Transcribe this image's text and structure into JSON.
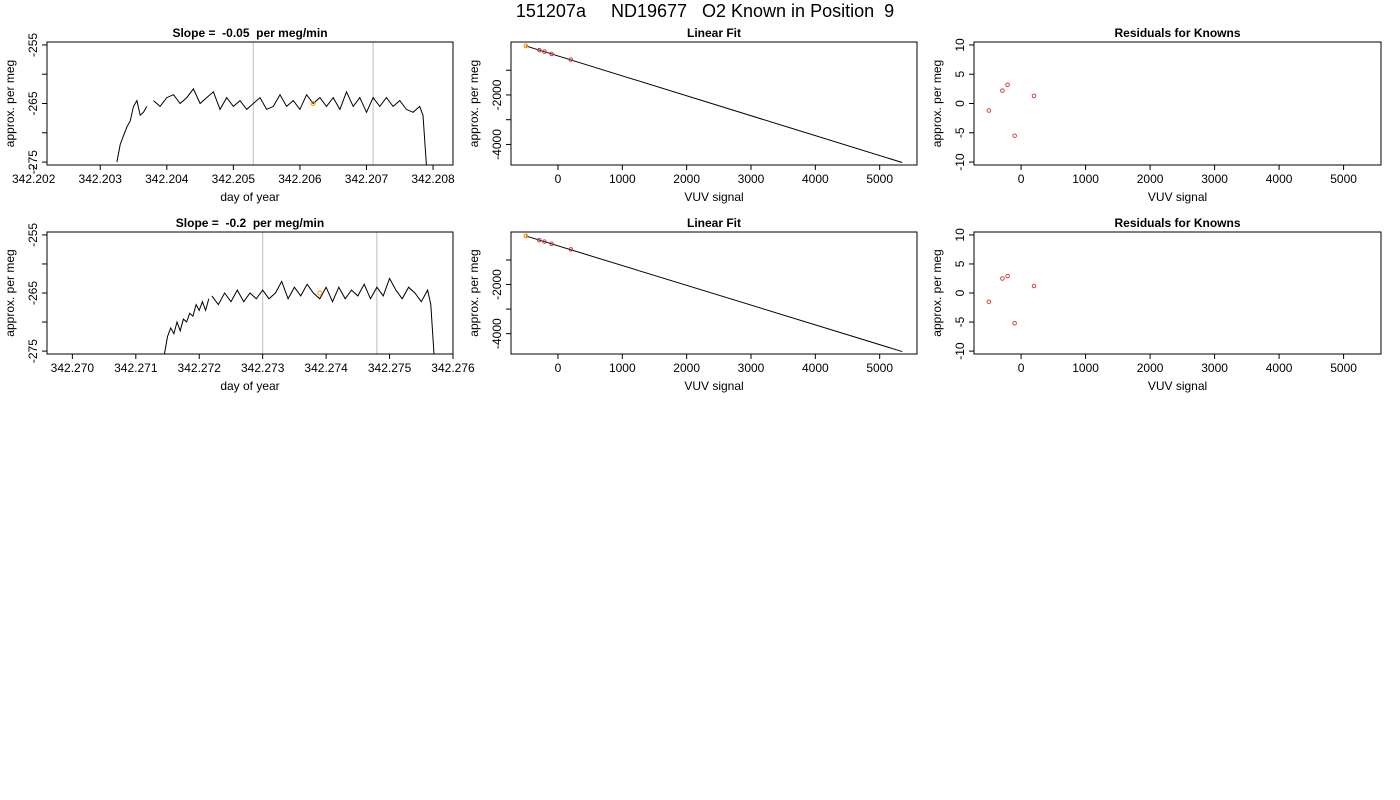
{
  "page_title": "151207a     ND19677   O2 Known in Position  9",
  "colors": {
    "line": "#000000",
    "cursor": "#c8c8c8",
    "point": "#cc3333",
    "highlight": "#ff9900"
  },
  "chart_data": [
    {
      "type": "line",
      "title": "Slope =  -0.05  per meg/min",
      "xlabel": "day of year",
      "ylabel": "approx. per meg",
      "xlim": [
        342.2022,
        342.2083
      ],
      "ylim": [
        -275.5,
        -254.5
      ],
      "x_ticks": [
        342.202,
        342.203,
        342.204,
        342.205,
        342.206,
        342.207,
        342.208
      ],
      "x_tick_labels": [
        "342.202",
        "342.203",
        "342.204",
        "342.205",
        "342.206",
        "342.207",
        "342.208"
      ],
      "y_ticks": [
        -255,
        -260,
        -265,
        -270,
        -275
      ],
      "y_tick_labels": [
        "-255",
        "",
        "-265",
        "",
        "-275"
      ],
      "vlines": [
        342.2053,
        342.2071
      ],
      "highlight_point": [
        342.2062,
        -265
      ],
      "trace_start": 342.2032,
      "trace_end": 342.2079,
      "series": [
        {
          "x": [
            342.20325,
            342.2033,
            342.20335,
            342.2034,
            342.20345,
            342.2035,
            342.20355,
            342.2036,
            342.20365,
            342.2037
          ],
          "y": [
            -275,
            -272,
            -270.5,
            -269,
            -268,
            -265.5,
            -264.5,
            -267,
            -266.5,
            -265.5
          ]
        },
        {
          "x": [
            342.2038,
            342.2039,
            342.204,
            342.2041,
            342.2042,
            342.2043,
            342.2044,
            342.2045,
            342.2046,
            342.2047,
            342.2048,
            342.2049,
            342.205,
            342.2051,
            342.2052,
            342.2053,
            342.2054,
            342.2055,
            342.2056,
            342.2057,
            342.2058,
            342.2059,
            342.206,
            342.2061,
            342.2062,
            342.2063,
            342.2064,
            342.2065,
            342.2066,
            342.2067,
            342.2068,
            342.2069,
            342.207,
            342.2071,
            342.2072,
            342.2073,
            342.2074,
            342.2075,
            342.2076,
            342.2077,
            342.2078,
            342.20785,
            342.2079
          ],
          "y": [
            -264.5,
            -265.5,
            -264,
            -263.5,
            -265,
            -264,
            -262.5,
            -265,
            -264,
            -263,
            -266,
            -264,
            -265.5,
            -264.5,
            -266,
            -265,
            -264,
            -266,
            -265.5,
            -263.5,
            -265.5,
            -264.5,
            -266,
            -263.5,
            -265,
            -264,
            -265.5,
            -264,
            -266,
            -263,
            -265.5,
            -264,
            -266.5,
            -264,
            -265.5,
            -264,
            -265.5,
            -264.5,
            -266,
            -266.5,
            -265.5,
            -267,
            -275.5
          ]
        }
      ]
    },
    {
      "type": "scatter",
      "title": "Linear Fit",
      "xlabel": "VUV signal",
      "ylabel": "approx. per meg",
      "xlim": [
        -730,
        5580
      ],
      "ylim": [
        -4830,
        140
      ],
      "x_ticks": [
        0,
        1000,
        2000,
        3000,
        4000,
        5000
      ],
      "x_tick_labels": [
        "0",
        "1000",
        "2000",
        "3000",
        "4000",
        "5000"
      ],
      "y_ticks": [
        -1000,
        -2000,
        -3000,
        -4000
      ],
      "y_tick_labels": [
        "",
        "-2000",
        "",
        "-4000"
      ],
      "fit_line": {
        "x": [
          -500,
          5350
        ],
        "y": [
          -20,
          -4730
        ]
      },
      "points": {
        "x": [
          -500,
          -290,
          -210,
          -100,
          200
        ],
        "y": [
          -20,
          -190,
          -250,
          -340,
          -570
        ]
      },
      "highlight_point": [
        -500,
        -20
      ]
    },
    {
      "type": "scatter",
      "title": "Residuals for Knowns",
      "xlabel": "VUV signal",
      "ylabel": "approx. per meg",
      "xlim": [
        -730,
        5580
      ],
      "ylim": [
        -10.5,
        10.5
      ],
      "x_ticks": [
        0,
        1000,
        2000,
        3000,
        4000,
        5000
      ],
      "x_tick_labels": [
        "0",
        "1000",
        "2000",
        "3000",
        "4000",
        "5000"
      ],
      "y_ticks": [
        10,
        5,
        0,
        -5,
        -10
      ],
      "y_tick_labels": [
        "10",
        "5",
        "0",
        "-5",
        "-10"
      ],
      "points": {
        "x": [
          -500,
          -290,
          -210,
          -100,
          200
        ],
        "y": [
          -1.2,
          2.2,
          3.2,
          -5.5,
          1.3
        ]
      }
    },
    {
      "type": "line",
      "title": "Slope =  -0.2  per meg/min",
      "xlabel": "day of year",
      "ylabel": "approx. per meg",
      "xlim": [
        342.2696,
        342.276
      ],
      "ylim": [
        -275.5,
        -254.5
      ],
      "x_ticks": [
        342.27,
        342.271,
        342.272,
        342.273,
        342.274,
        342.275,
        342.276
      ],
      "x_tick_labels": [
        "342.270",
        "342.271",
        "342.272",
        "342.273",
        "342.274",
        "342.275",
        "342.276"
      ],
      "y_ticks": [
        -255,
        -260,
        -265,
        -270,
        -275
      ],
      "y_tick_labels": [
        "-255",
        "",
        "-265",
        "",
        "-275"
      ],
      "vlines": [
        342.273,
        342.2748
      ],
      "highlight_point": [
        342.2739,
        -265
      ],
      "trace_start": 342.2714,
      "trace_end": 342.2757,
      "series": [
        {
          "x": [
            342.27145,
            342.2715,
            342.27155,
            342.2716,
            342.27165,
            342.2717,
            342.27175,
            342.2718,
            342.27185,
            342.2719,
            342.27195,
            342.272,
            342.27205,
            342.2721,
            342.27215
          ],
          "y": [
            -275.5,
            -272.5,
            -271,
            -272,
            -270,
            -271.5,
            -269.5,
            -270,
            -268.5,
            -269,
            -267,
            -268,
            -266.5,
            -268,
            -266
          ]
        },
        {
          "x": [
            342.2722,
            342.2723,
            342.2724,
            342.2725,
            342.2726,
            342.2727,
            342.2728,
            342.2729,
            342.273,
            342.2731,
            342.2732,
            342.2733,
            342.2734,
            342.2735,
            342.2736,
            342.2737,
            342.2738,
            342.2739,
            342.274,
            342.2741,
            342.2742,
            342.2743,
            342.2744,
            342.2745,
            342.2746,
            342.2747,
            342.2748,
            342.2749,
            342.275,
            342.2751,
            342.2752,
            342.2753,
            342.2754,
            342.2755,
            342.2756,
            342.27565,
            342.2757
          ],
          "y": [
            -265.5,
            -267,
            -265,
            -266.5,
            -264.5,
            -266.5,
            -265,
            -266,
            -264.5,
            -266,
            -265,
            -263,
            -266,
            -264,
            -265.5,
            -263.5,
            -265,
            -266,
            -264,
            -266.5,
            -264,
            -266,
            -264.5,
            -265.5,
            -263.5,
            -266,
            -264,
            -265.5,
            -262.5,
            -264.5,
            -266,
            -264,
            -265,
            -266.5,
            -264.5,
            -267,
            -275.5
          ]
        }
      ]
    },
    {
      "type": "scatter",
      "title": "Linear Fit",
      "xlabel": "VUV signal",
      "ylabel": "approx. per meg",
      "xlim": [
        -730,
        5580
      ],
      "ylim": [
        -4830,
        140
      ],
      "x_ticks": [
        0,
        1000,
        2000,
        3000,
        4000,
        5000
      ],
      "x_tick_labels": [
        "0",
        "1000",
        "2000",
        "3000",
        "4000",
        "5000"
      ],
      "y_ticks": [
        -1000,
        -2000,
        -3000,
        -4000
      ],
      "y_tick_labels": [
        "",
        "-2000",
        "",
        "-4000"
      ],
      "fit_line": {
        "x": [
          -500,
          5350
        ],
        "y": [
          -20,
          -4730
        ]
      },
      "points": {
        "x": [
          -500,
          -290,
          -210,
          -100,
          200
        ],
        "y": [
          -20,
          -190,
          -250,
          -340,
          -570
        ]
      },
      "highlight_point": [
        -500,
        -20
      ]
    },
    {
      "type": "scatter",
      "title": "Residuals for Knowns",
      "xlabel": "VUV signal",
      "ylabel": "approx. per meg",
      "xlim": [
        -730,
        5580
      ],
      "ylim": [
        -10.5,
        10.5
      ],
      "x_ticks": [
        0,
        1000,
        2000,
        3000,
        4000,
        5000
      ],
      "x_tick_labels": [
        "0",
        "1000",
        "2000",
        "3000",
        "4000",
        "5000"
      ],
      "y_ticks": [
        10,
        5,
        0,
        -5,
        -10
      ],
      "y_tick_labels": [
        "10",
        "5",
        "0",
        "-5",
        "-10"
      ],
      "points": {
        "x": [
          -500,
          -290,
          -210,
          -100,
          200
        ],
        "y": [
          -1.5,
          2.5,
          2.9,
          -5.2,
          1.2
        ]
      }
    }
  ]
}
